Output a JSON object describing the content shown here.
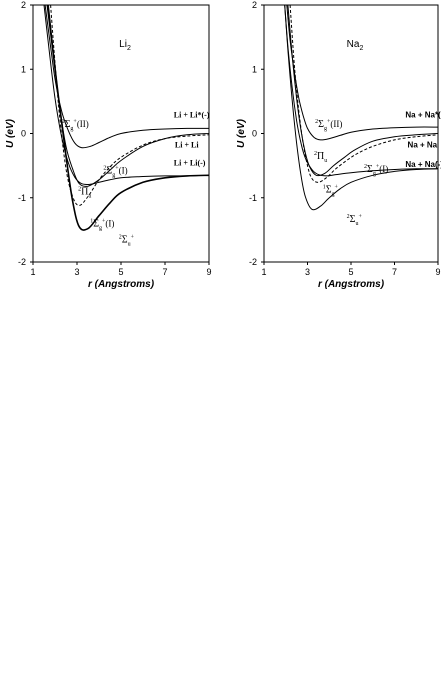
{
  "chart_data": [
    {
      "type": "line",
      "title": "Li2",
      "title_main": "Li",
      "title_sub": "2",
      "xlabel": "r (Angstroms)",
      "ylabel": "U (eV)",
      "xlim": [
        1,
        9
      ],
      "ylim": [
        -2,
        2
      ],
      "xticks": [
        "1",
        "3",
        "5",
        "7",
        "9"
      ],
      "yticks": [
        "2",
        "1",
        "0",
        "-1",
        "-2"
      ],
      "series": [
        {
          "id": "li-2sg-II",
          "style": "solid",
          "x": [
            1.55,
            1.8,
            2.0,
            2.3,
            2.6,
            2.9,
            3.2,
            3.6,
            4.0,
            4.5,
            5.0,
            6.0,
            7.0,
            8.0,
            9.0
          ],
          "y": [
            2.0,
            1.35,
            0.85,
            0.35,
            0.05,
            -0.15,
            -0.22,
            -0.2,
            -0.14,
            -0.06,
            0.0,
            0.05,
            0.07,
            0.08,
            0.08
          ]
        },
        {
          "id": "li-2pu",
          "style": "solid",
          "x": [
            1.7,
            1.95,
            2.2,
            2.5,
            2.8,
            3.1,
            3.5,
            4.0,
            4.5,
            5.0,
            6.0,
            7.0,
            8.0,
            9.0
          ],
          "y": [
            2.0,
            1.2,
            0.45,
            -0.2,
            -0.55,
            -0.78,
            -0.82,
            -0.72,
            -0.57,
            -0.42,
            -0.2,
            -0.08,
            -0.02,
            0.0
          ]
        },
        {
          "id": "li-2sg-I",
          "style": "solid",
          "x": [
            1.5,
            1.75,
            2.0,
            2.3,
            2.6,
            2.9,
            3.2,
            3.6,
            4.0,
            4.5,
            5.0,
            6.0,
            7.0,
            8.0,
            9.0
          ],
          "y": [
            2.0,
            1.25,
            0.55,
            -0.05,
            -0.45,
            -0.68,
            -0.78,
            -0.79,
            -0.76,
            -0.72,
            -0.69,
            -0.67,
            -0.66,
            -0.66,
            -0.65
          ]
        },
        {
          "id": "li-2su",
          "style": "solid-bold",
          "x": [
            1.65,
            1.9,
            2.2,
            2.5,
            2.8,
            3.1,
            3.5,
            4.0,
            4.5,
            5.0,
            6.0,
            7.0,
            8.0,
            9.0
          ],
          "y": [
            2.0,
            1.3,
            0.45,
            -0.35,
            -1.05,
            -1.45,
            -1.48,
            -1.28,
            -1.08,
            -0.92,
            -0.76,
            -0.69,
            -0.66,
            -0.65
          ]
        },
        {
          "id": "li-1sg-I",
          "style": "dashed",
          "x": [
            1.8,
            2.0,
            2.2,
            2.5,
            2.8,
            3.1,
            3.5,
            4.0,
            4.5,
            5.0,
            6.0,
            7.0,
            8.0,
            9.0
          ],
          "y": [
            2.0,
            1.1,
            0.3,
            -0.55,
            -0.98,
            -1.12,
            -0.98,
            -0.72,
            -0.52,
            -0.37,
            -0.18,
            -0.08,
            -0.04,
            -0.02
          ]
        }
      ],
      "annotations": [
        {
          "id": "li-lab-2sgII",
          "text": "2Σg+(II)",
          "x": 2.3,
          "y": 0.1
        },
        {
          "id": "li-lab-2pu",
          "text": "2Πu",
          "x": 3.05,
          "y": -0.95
        },
        {
          "id": "li-lab-2sgI",
          "text": "2Σg+(I)",
          "x": 4.2,
          "y": -0.62
        },
        {
          "id": "li-lab-1sgI",
          "text": "1Σg+(I)",
          "x": 3.6,
          "y": -1.45
        },
        {
          "id": "li-lab-2su",
          "text": "2Σu+",
          "x": 4.9,
          "y": -1.7
        },
        {
          "id": "li-asym-1",
          "text": "Li + Li*(-)",
          "x": 7.4,
          "y": 0.25
        },
        {
          "id": "li-asym-2",
          "text": "Li + Li",
          "x": 7.45,
          "y": -0.22
        },
        {
          "id": "li-asym-3",
          "text": "Li + Li(-)",
          "x": 7.4,
          "y": -0.5
        }
      ]
    },
    {
      "type": "line",
      "title": "Na2",
      "title_main": "Na",
      "title_sub": "2",
      "xlabel": "r (Angstroms)",
      "ylabel": "U (eV)",
      "xlim": [
        1,
        9
      ],
      "ylim": [
        -2,
        2
      ],
      "xticks": [
        "1",
        "3",
        "5",
        "7",
        "9"
      ],
      "yticks": [
        "2",
        "1",
        "0",
        "-1",
        "-2"
      ],
      "series": [
        {
          "id": "na-2sg-II",
          "style": "solid",
          "x": [
            2.05,
            2.2,
            2.4,
            2.6,
            2.8,
            3.0,
            3.3,
            3.6,
            4.0,
            4.5,
            5.0,
            6.0,
            7.0,
            8.0,
            9.0
          ],
          "y": [
            2.0,
            1.45,
            0.95,
            0.55,
            0.28,
            0.08,
            -0.06,
            -0.1,
            -0.08,
            -0.03,
            0.02,
            0.07,
            0.09,
            0.1,
            0.1
          ]
        },
        {
          "id": "na-2pu",
          "style": "solid",
          "x": [
            2.1,
            2.3,
            2.5,
            2.7,
            2.9,
            3.1,
            3.4,
            3.8,
            4.2,
            4.7,
            5.2,
            6.0,
            7.0,
            8.0,
            9.0
          ],
          "y": [
            2.0,
            1.2,
            0.55,
            0.05,
            -0.3,
            -0.52,
            -0.65,
            -0.62,
            -0.5,
            -0.37,
            -0.25,
            -0.12,
            -0.05,
            -0.02,
            0.0
          ]
        },
        {
          "id": "na-2sg-I",
          "style": "solid",
          "x": [
            1.95,
            2.1,
            2.3,
            2.5,
            2.7,
            2.9,
            3.2,
            3.5,
            3.9,
            4.3,
            5.0,
            6.0,
            7.0,
            8.0,
            9.0
          ],
          "y": [
            2.0,
            1.35,
            0.7,
            0.2,
            -0.15,
            -0.38,
            -0.56,
            -0.64,
            -0.66,
            -0.64,
            -0.61,
            -0.58,
            -0.56,
            -0.55,
            -0.55
          ]
        },
        {
          "id": "na-2su",
          "style": "solid",
          "x": [
            1.95,
            2.1,
            2.3,
            2.5,
            2.7,
            2.9,
            3.2,
            3.6,
            4.0,
            4.5,
            5.0,
            6.0,
            7.0,
            8.0,
            9.0
          ],
          "y": [
            2.0,
            1.3,
            0.5,
            -0.15,
            -0.65,
            -0.98,
            -1.18,
            -1.13,
            -1.0,
            -0.86,
            -0.76,
            -0.65,
            -0.59,
            -0.56,
            -0.55
          ]
        },
        {
          "id": "na-1sg",
          "style": "dashed",
          "x": [
            2.2,
            2.4,
            2.6,
            2.8,
            3.0,
            3.2,
            3.5,
            3.9,
            4.3,
            4.8,
            5.3,
            6.0,
            7.0,
            8.0,
            9.0
          ],
          "y": [
            2.0,
            1.05,
            0.35,
            -0.15,
            -0.5,
            -0.7,
            -0.76,
            -0.68,
            -0.55,
            -0.42,
            -0.31,
            -0.2,
            -0.1,
            -0.05,
            -0.02
          ]
        }
      ],
      "annotations": [
        {
          "id": "na-lab-2sgII",
          "text": "2Σg+(II)",
          "x": 3.35,
          "y": 0.1
        },
        {
          "id": "na-lab-2pu",
          "text": "2Πu",
          "x": 3.3,
          "y": -0.4
        },
        {
          "id": "na-lab-2sgI",
          "text": "2Σg+(I)",
          "x": 5.6,
          "y": -0.6
        },
        {
          "id": "na-lab-1sg",
          "text": "1Σg+",
          "x": 3.7,
          "y": -0.92
        },
        {
          "id": "na-lab-2su",
          "text": "2Σu+",
          "x": 4.8,
          "y": -1.38
        },
        {
          "id": "na-asym-1",
          "text": "Na + Na*(-)",
          "x": 7.5,
          "y": 0.25
        },
        {
          "id": "na-asym-2",
          "text": "Na + Na",
          "x": 7.6,
          "y": -0.22
        },
        {
          "id": "na-asym-3",
          "text": "Na + Na(-)",
          "x": 7.5,
          "y": -0.52
        }
      ]
    }
  ]
}
